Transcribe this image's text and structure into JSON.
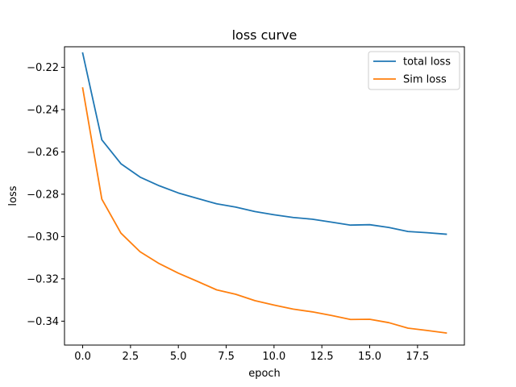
{
  "chart_data": {
    "type": "line",
    "title": "loss curve",
    "xlabel": "epoch",
    "ylabel": "loss",
    "xlim": [
      -0.95,
      19.95
    ],
    "ylim": [
      -0.3513,
      -0.2103
    ],
    "xticks": [
      0.0,
      2.5,
      5.0,
      7.5,
      10.0,
      12.5,
      15.0,
      17.5
    ],
    "xtick_labels": [
      "0.0",
      "2.5",
      "5.0",
      "7.5",
      "10.0",
      "12.5",
      "15.0",
      "17.5"
    ],
    "yticks": [
      -0.22,
      -0.24,
      -0.26,
      -0.28,
      -0.3,
      -0.32,
      -0.34
    ],
    "ytick_labels": [
      "−0.22",
      "−0.24",
      "−0.26",
      "−0.28",
      "−0.30",
      "−0.32",
      "−0.34"
    ],
    "grid": false,
    "legend_position": "top-right",
    "x": [
      0,
      1,
      2,
      3,
      4,
      5,
      6,
      7,
      8,
      9,
      10,
      11,
      12,
      13,
      14,
      15,
      16,
      17,
      18,
      19
    ],
    "series": [
      {
        "name": "total loss",
        "color": "#1f77b4",
        "values": [
          -0.2133,
          -0.2543,
          -0.2656,
          -0.2719,
          -0.276,
          -0.2794,
          -0.282,
          -0.2845,
          -0.2861,
          -0.2882,
          -0.2897,
          -0.291,
          -0.2918,
          -0.2932,
          -0.2946,
          -0.2944,
          -0.2957,
          -0.2976,
          -0.2982,
          -0.2989
        ]
      },
      {
        "name": "Sim loss",
        "color": "#ff7f0e",
        "values": [
          -0.2298,
          -0.2823,
          -0.2984,
          -0.3072,
          -0.3128,
          -0.3173,
          -0.3212,
          -0.3252,
          -0.3273,
          -0.3303,
          -0.3324,
          -0.3343,
          -0.3356,
          -0.3373,
          -0.3392,
          -0.3391,
          -0.3407,
          -0.3433,
          -0.3444,
          -0.3456
        ]
      }
    ]
  }
}
